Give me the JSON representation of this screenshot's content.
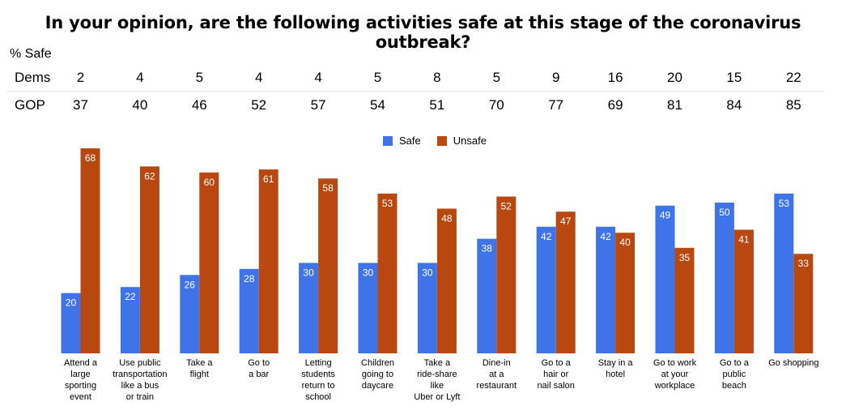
{
  "title": "In your opinion, are the following activities safe at this stage of the coronavirus outbreak?",
  "table": {
    "header": "% Safe",
    "rows": [
      {
        "label": "Dems",
        "values": [
          2,
          4,
          5,
          4,
          4,
          5,
          8,
          5,
          9,
          16,
          20,
          15,
          22
        ]
      },
      {
        "label": "GOP",
        "values": [
          37,
          40,
          46,
          52,
          57,
          54,
          51,
          70,
          77,
          69,
          81,
          84,
          85
        ]
      }
    ]
  },
  "colors": {
    "safe": "#3f74e8",
    "unsafe": "#b84810"
  },
  "chart_data": {
    "type": "bar",
    "categories": [
      "Attend a\nlarge\nsporting\nevent",
      "Use public\ntransportation\nlike a bus\nor train",
      "Take a\nflight",
      "Go to\na bar",
      "Letting\nstudents\nreturn to\nschool",
      "Children\ngoing to\ndaycare",
      "Take a\nride-share\nlike\nUber or Lyft",
      "Dine-in\nat a\nrestaurant",
      "Go to a\nhair or\nnail salon",
      "Stay in a\nhotel",
      "Go to work\nat your\nworkplace",
      "Go to a\npublic\nbeach",
      "Go shopping"
    ],
    "series": [
      {
        "name": "Safe",
        "values": [
          20,
          22,
          26,
          28,
          30,
          30,
          30,
          38,
          42,
          42,
          49,
          50,
          53
        ]
      },
      {
        "name": "Unsafe",
        "values": [
          68,
          62,
          60,
          61,
          58,
          53,
          48,
          52,
          47,
          40,
          35,
          41,
          33
        ]
      }
    ],
    "ylim": [
      0,
      70
    ],
    "legend": "top-center",
    "grid": false,
    "data_labels": true
  }
}
